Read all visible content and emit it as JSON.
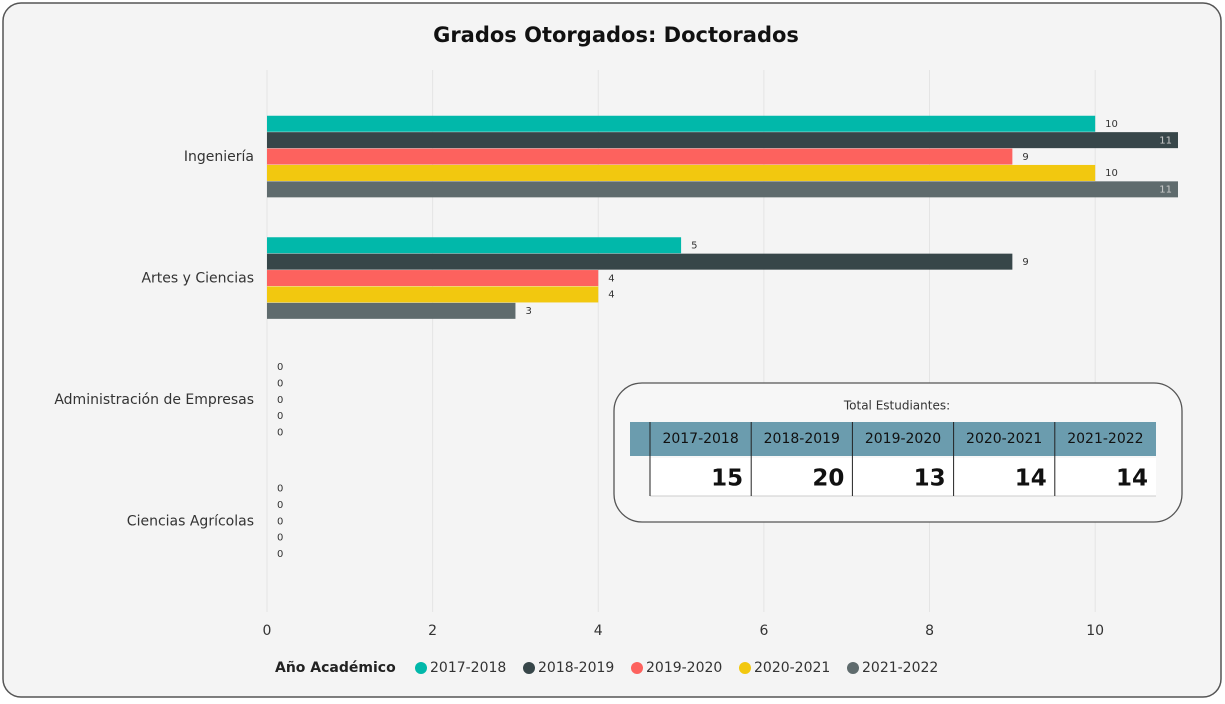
{
  "chart_data": {
    "type": "bar",
    "orientation": "horizontal",
    "title": "Grados Otorgados: Doctorados",
    "categories": [
      "Ingeniería",
      "Artes y Ciencias",
      "Administración de Empresas",
      "Ciencias Agrícolas"
    ],
    "series": [
      {
        "name": "2017-2018",
        "color": "#01b8aa",
        "values": [
          10,
          5,
          0,
          0
        ]
      },
      {
        "name": "2018-2019",
        "color": "#374649",
        "values": [
          11,
          9,
          0,
          0
        ]
      },
      {
        "name": "2019-2020",
        "color": "#fd625e",
        "values": [
          9,
          4,
          0,
          0
        ]
      },
      {
        "name": "2020-2021",
        "color": "#f2c80f",
        "values": [
          10,
          4,
          0,
          0
        ]
      },
      {
        "name": "2021-2022",
        "color": "#5f6b6d",
        "values": [
          11,
          3,
          0,
          0
        ]
      }
    ],
    "xlim": [
      0,
      11
    ],
    "xticks": [
      0,
      2,
      4,
      6,
      8,
      10
    ],
    "grid": true,
    "legend_title": "Año Académico",
    "legend_position": "bottom"
  },
  "table": {
    "title": "Total Estudiantes:",
    "columns": [
      "2017-2018",
      "2018-2019",
      "2019-2020",
      "2020-2021",
      "2021-2022"
    ],
    "values": [
      15,
      20,
      13,
      14,
      14
    ]
  }
}
